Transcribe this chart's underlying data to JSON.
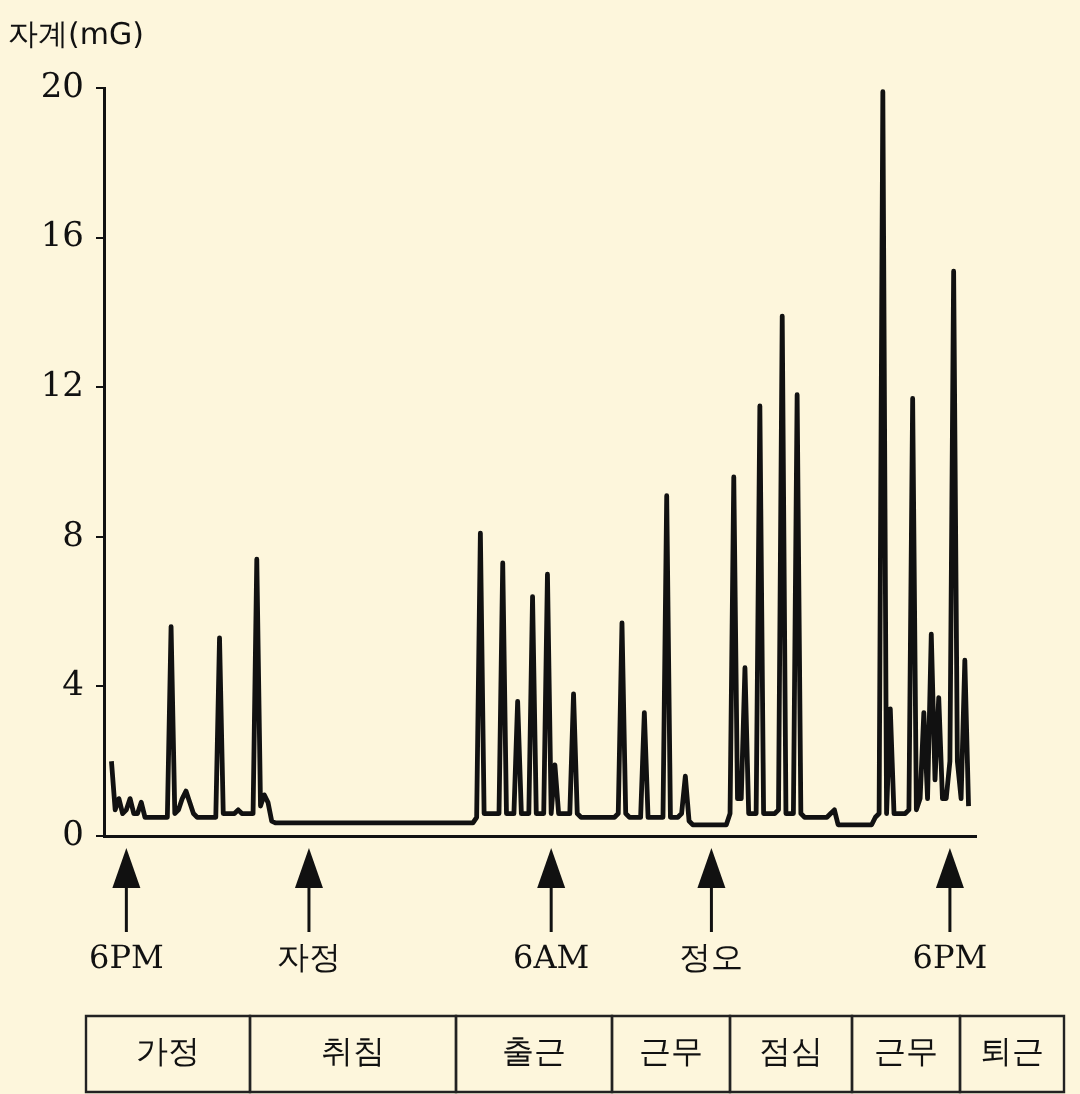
{
  "chart_data": {
    "type": "line",
    "ylabel": "자계(mG)",
    "categories": [
      null,
      null,
      null,
      null,
      null,
      null,
      "6PM",
      null,
      null,
      null,
      null,
      null,
      null,
      null,
      null,
      null,
      null,
      null,
      null,
      null,
      null,
      null,
      null,
      null,
      null,
      null,
      null,
      null,
      null,
      null,
      null,
      null,
      null,
      null,
      null,
      null,
      null,
      null,
      null,
      null,
      null,
      null,
      null,
      null,
      null,
      null,
      null,
      null,
      null,
      null,
      null,
      null,
      null,
      null,
      null,
      "자정",
      null,
      null,
      null,
      null,
      null,
      null,
      null,
      null,
      null,
      null,
      null,
      null,
      null,
      null,
      null,
      null,
      null,
      null,
      null,
      null,
      null,
      null,
      null,
      null,
      null,
      null,
      null,
      null,
      null,
      null,
      null,
      null,
      null,
      null,
      null,
      null,
      null,
      null,
      null,
      null,
      null,
      null,
      null,
      null,
      null,
      null,
      null,
      null,
      null,
      null,
      null,
      null,
      null,
      null,
      null,
      null,
      null,
      null,
      null,
      null,
      null,
      null,
      null,
      null,
      "6AM",
      null,
      null,
      null,
      null,
      null,
      null,
      null,
      null,
      null,
      null,
      null,
      null,
      null,
      null,
      null,
      null,
      null,
      null,
      null,
      null,
      null,
      null,
      null,
      null,
      null,
      null,
      null,
      null,
      null,
      null,
      null,
      null,
      null,
      null,
      null,
      null,
      null,
      null,
      null,
      null,
      null,
      null,
      "정오",
      null,
      null,
      null,
      null,
      null,
      null,
      null,
      null,
      null,
      null,
      null,
      null,
      null,
      null,
      null,
      null,
      null,
      null,
      null,
      null,
      null,
      null,
      null,
      null,
      null,
      null,
      null,
      null,
      null,
      null,
      null,
      null,
      null,
      null,
      null,
      null,
      null,
      null,
      null,
      null,
      null,
      null,
      null,
      null,
      null,
      null,
      null,
      null,
      null,
      null,
      null,
      null,
      null,
      null,
      null,
      null,
      null,
      null,
      null,
      null,
      null,
      null,
      null,
      "6PM",
      null,
      null,
      null,
      null,
      null,
      null,
      null
    ],
    "series": [
      {
        "color": "#111111",
        "values": [
          null,
          null,
          2.0,
          0.7,
          1.0,
          0.6,
          0.7,
          1.0,
          0.6,
          0.6,
          0.9,
          0.5,
          0.5,
          0.5,
          0.5,
          0.5,
          0.5,
          0.5,
          5.6,
          0.6,
          0.7,
          1.0,
          1.2,
          0.9,
          0.6,
          0.5,
          0.5,
          0.5,
          0.5,
          0.5,
          0.5,
          5.3,
          0.6,
          0.6,
          0.6,
          0.6,
          0.7,
          0.6,
          0.6,
          0.6,
          0.6,
          7.4,
          0.8,
          1.1,
          0.9,
          0.4,
          0.35,
          0.35,
          0.35,
          0.35,
          0.35,
          0.35,
          0.35,
          0.35,
          0.35,
          0.35,
          0.35,
          0.35,
          0.35,
          0.35,
          0.35,
          0.35,
          0.35,
          0.35,
          0.35,
          0.35,
          0.35,
          0.35,
          0.35,
          0.35,
          0.35,
          0.35,
          0.35,
          0.35,
          0.35,
          0.35,
          0.35,
          0.35,
          0.35,
          0.35,
          0.35,
          0.35,
          0.35,
          0.35,
          0.35,
          0.35,
          0.35,
          0.35,
          0.35,
          0.35,
          0.35,
          0.35,
          0.35,
          0.35,
          0.35,
          0.35,
          0.35,
          0.35,
          0.35,
          0.35,
          0.5,
          8.1,
          0.6,
          0.6,
          0.6,
          0.6,
          0.6,
          7.3,
          0.6,
          0.6,
          0.6,
          3.6,
          0.6,
          0.6,
          0.6,
          6.4,
          0.6,
          0.6,
          0.6,
          7.0,
          0.6,
          1.9,
          0.6,
          0.6,
          0.6,
          0.6,
          3.8,
          0.6,
          0.5,
          0.5,
          0.5,
          0.5,
          0.5,
          0.5,
          0.5,
          0.5,
          0.5,
          0.5,
          0.6,
          5.7,
          0.6,
          0.5,
          0.5,
          0.5,
          0.5,
          3.3,
          0.5,
          0.5,
          0.5,
          0.5,
          0.5,
          9.1,
          0.5,
          0.5,
          0.5,
          0.6,
          1.6,
          0.4,
          0.3,
          0.3,
          0.3,
          0.3,
          0.3,
          0.3,
          0.3,
          0.3,
          0.3,
          0.3,
          0.6,
          9.6,
          1.0,
          1.0,
          4.5,
          0.6,
          0.6,
          0.6,
          11.5,
          0.6,
          0.6,
          0.6,
          0.6,
          0.7,
          13.9,
          0.6,
          0.6,
          0.6,
          11.8,
          0.6,
          0.5,
          0.5,
          0.5,
          0.5,
          0.5,
          0.5,
          0.5,
          0.6,
          0.7,
          0.3,
          0.3,
          0.3,
          0.3,
          0.3,
          0.3,
          0.3,
          0.3,
          0.3,
          0.3,
          0.5,
          0.6,
          19.9,
          0.6,
          3.4,
          0.6,
          0.6,
          0.6,
          0.6,
          0.7,
          11.7,
          0.7,
          1.0,
          3.3,
          1.0,
          5.4,
          1.5,
          3.7,
          1.0,
          1.0,
          2.0,
          15.1,
          2.0,
          1.0,
          4.7,
          0.8,
          null,
          null
        ]
      }
    ],
    "ylim": [
      0,
      20
    ],
    "yticks": [
      0,
      4,
      8,
      12,
      16,
      20
    ],
    "grid": false,
    "legend": false,
    "marker": "none",
    "line_style": "solid",
    "annotations": [
      "가정",
      "취침",
      "출근",
      "근무",
      "점심",
      "근무",
      "퇴근"
    ]
  }
}
